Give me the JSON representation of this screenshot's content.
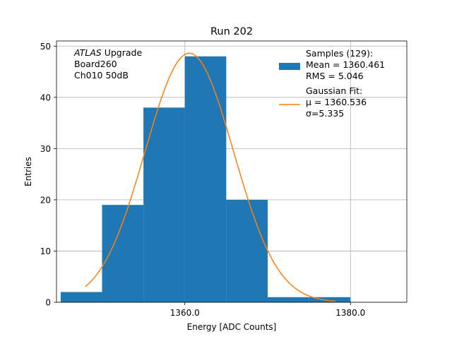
{
  "chart_data": {
    "type": "bar",
    "title": "Run 202",
    "xlabel": "Energy [ADC Counts]",
    "ylabel": "Entries",
    "xlim": [
      1344.5,
      1386.8
    ],
    "ylim": [
      0,
      51
    ],
    "x_ticks": [
      1360.0,
      1380.0
    ],
    "x_tick_labels": [
      "1360.0",
      "1380.0"
    ],
    "y_ticks": [
      0,
      10,
      20,
      30,
      40,
      50
    ],
    "y_tick_labels": [
      "0",
      "10",
      "20",
      "30",
      "40",
      "50"
    ],
    "grid": true,
    "histogram": {
      "bin_edges": [
        1345,
        1350,
        1355,
        1360,
        1365,
        1370,
        1375,
        1380,
        1385
      ],
      "counts": [
        2,
        19,
        38,
        48,
        20,
        1,
        1,
        0
      ],
      "color": "#1f77b4"
    },
    "fit": {
      "mu": 1360.536,
      "sigma": 5.335,
      "amplitude": 48.6,
      "x_start": 1348.0,
      "x_end": 1378.2,
      "color": "#ff7f0e"
    },
    "annotation_lines": [
      {
        "italic": "ATLAS",
        "rest": " Upgrade"
      },
      {
        "italic": "",
        "rest": " Board260"
      },
      {
        "italic": "",
        "rest": " Ch010 50dB"
      }
    ],
    "legend": {
      "position": "upper-right",
      "samples_lines": [
        "Samples (129):",
        " Mean = 1360.461",
        " RMS = 5.046"
      ],
      "fit_lines": [
        "Gaussian Fit:",
        " μ = 1360.536",
        " σ=5.335"
      ]
    }
  }
}
